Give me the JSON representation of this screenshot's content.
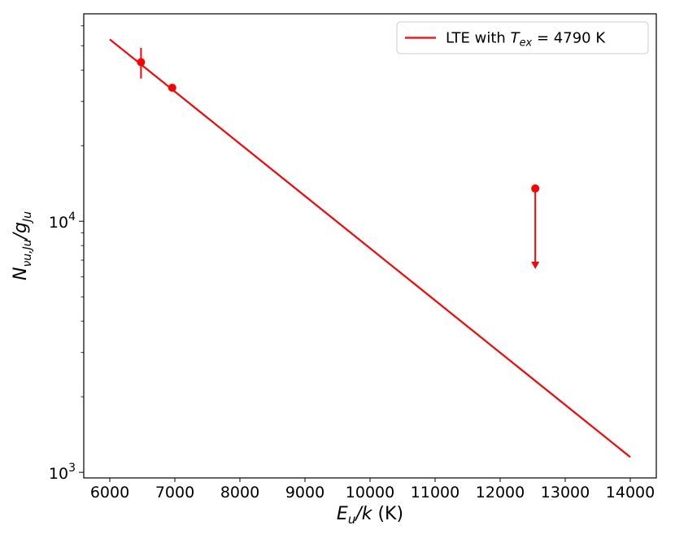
{
  "chart_data": {
    "type": "scatter",
    "xlabel": {
      "main": "E",
      "sub": "u",
      "mid": "/k",
      "tail": " (K)"
    },
    "ylabel": {
      "main": "N",
      "sub": "νu,Ju",
      "mid": "/g",
      "sub2": "Ju"
    },
    "xlim": [
      5600,
      14400
    ],
    "ylim": [
      950,
      67000
    ],
    "yscale": "log",
    "grid": false,
    "legend_position": "top-right",
    "x_ticks": [
      {
        "value": 6000,
        "label": "6000"
      },
      {
        "value": 7000,
        "label": "7000"
      },
      {
        "value": 8000,
        "label": "8000"
      },
      {
        "value": 9000,
        "label": "9000"
      },
      {
        "value": 10000,
        "label": "10000"
      },
      {
        "value": 11000,
        "label": "11000"
      },
      {
        "value": 12000,
        "label": "12000"
      },
      {
        "value": 13000,
        "label": "13000"
      },
      {
        "value": 14000,
        "label": "14000"
      }
    ],
    "y_ticks": [
      {
        "value": 1000,
        "base": "10",
        "exp": "3"
      },
      {
        "value": 10000,
        "base": "10",
        "exp": "4"
      }
    ],
    "fit_line": {
      "name_prefix": "LTE with ",
      "name_T": "T",
      "name_sub": "ex",
      "name_value": " = 4790 K",
      "color": "#ff0000",
      "x": [
        6000,
        14000
      ],
      "y": [
        53000,
        1150
      ]
    },
    "points": [
      {
        "x": 6480,
        "y": 43000,
        "yerr_low": 37000,
        "yerr_high": 49000,
        "upper_limit": false
      },
      {
        "x": 6960,
        "y": 34000,
        "upper_limit": false
      },
      {
        "x": 12540,
        "y": 13500,
        "upper_limit": true,
        "arrow_to": 6500
      }
    ],
    "color": "#ff0000"
  }
}
